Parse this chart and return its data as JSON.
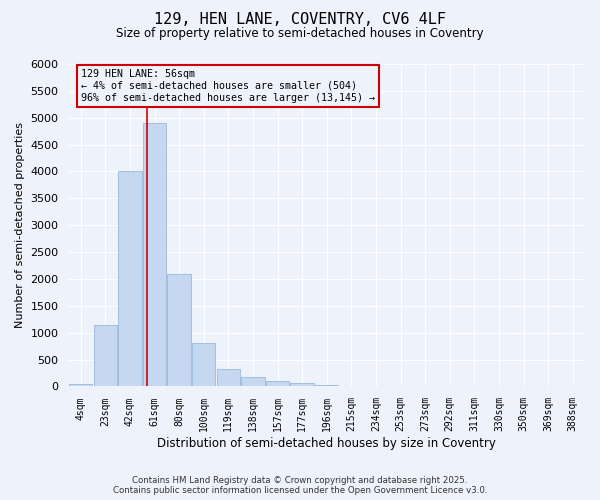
{
  "title1": "129, HEN LANE, COVENTRY, CV6 4LF",
  "title2": "Size of property relative to semi-detached houses in Coventry",
  "xlabel": "Distribution of semi-detached houses by size in Coventry",
  "ylabel": "Number of semi-detached properties",
  "categories": [
    "4sqm",
    "23sqm",
    "42sqm",
    "61sqm",
    "80sqm",
    "100sqm",
    "119sqm",
    "138sqm",
    "157sqm",
    "177sqm",
    "196sqm",
    "215sqm",
    "234sqm",
    "253sqm",
    "273sqm",
    "292sqm",
    "311sqm",
    "330sqm",
    "350sqm",
    "369sqm",
    "388sqm"
  ],
  "values": [
    50,
    1150,
    4000,
    4900,
    2100,
    800,
    330,
    170,
    110,
    60,
    30,
    0,
    0,
    0,
    0,
    0,
    0,
    0,
    0,
    0,
    0
  ],
  "bar_color": "#c5d8f0",
  "bar_edge_color": "#8ab0d8",
  "annotation_text": "129 HEN LANE: 56sqm\n← 4% of semi-detached houses are smaller (504)\n96% of semi-detached houses are larger (13,145) →",
  "ylim": [
    0,
    6000
  ],
  "yticks": [
    0,
    500,
    1000,
    1500,
    2000,
    2500,
    3000,
    3500,
    4000,
    4500,
    5000,
    5500,
    6000
  ],
  "background_color": "#eef2fb",
  "grid_color": "#ffffff",
  "footer_line1": "Contains HM Land Registry data © Crown copyright and database right 2025.",
  "footer_line2": "Contains public sector information licensed under the Open Government Licence v3.0.",
  "red_line_color": "#cc0000",
  "annotation_box_color": "#cc0000",
  "red_line_x": 2.68
}
